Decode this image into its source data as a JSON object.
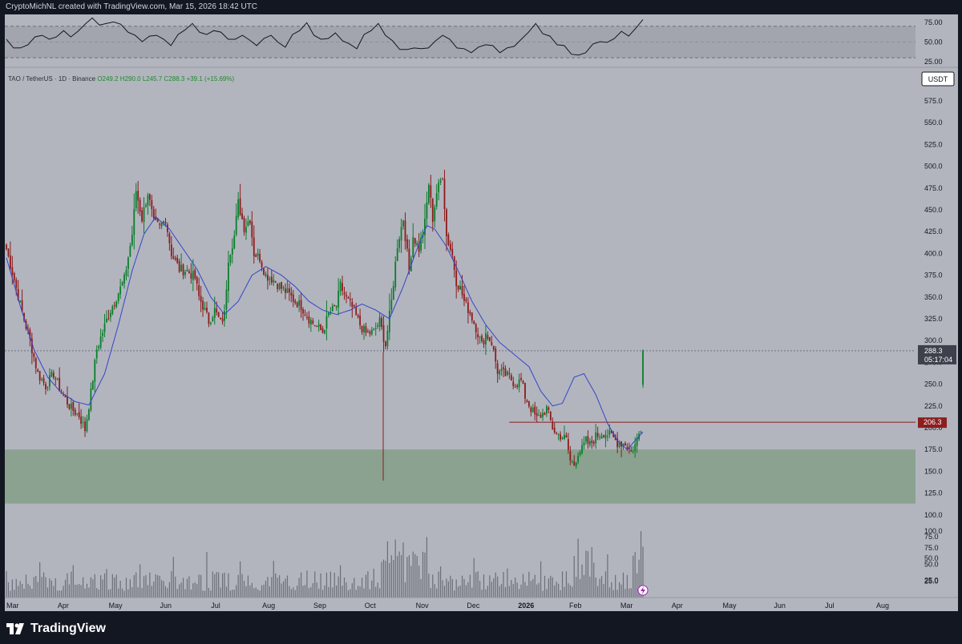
{
  "header": {
    "credit": "CryptoMichNL created with TradingView.com, Mar 15, 2026 18:42 UTC"
  },
  "legend": {
    "symbol": "TAO / TetherUS · 1D · Binance",
    "open": "O249.2",
    "high": "H290.0",
    "low": "L245.7",
    "close": "C288.3",
    "change": "+39.1 (+15.69%)"
  },
  "brand": {
    "name": "TradingView"
  },
  "chart_data": [
    {
      "type": "line",
      "panel": "RSI oscillator",
      "y_ticks": [
        "75.00",
        "50.00",
        "25.00"
      ],
      "ylim": [
        20,
        85
      ],
      "band": [
        30,
        70
      ],
      "midline": 50,
      "series": [
        {
          "values": [
            52,
            44,
            41,
            48,
            55,
            60,
            52,
            58,
            63,
            58,
            62,
            74,
            79,
            73,
            72,
            77,
            71,
            64,
            57,
            52,
            56,
            60,
            52,
            47,
            58,
            67,
            72,
            64,
            58,
            66,
            61,
            55,
            52,
            60,
            51,
            47,
            53,
            60,
            48,
            45,
            58,
            66,
            73,
            60,
            52,
            56,
            60,
            53,
            46,
            43,
            58,
            66,
            72,
            60,
            50,
            42,
            39,
            44,
            40,
            44,
            50,
            60,
            52,
            44,
            40,
            38,
            42,
            48,
            44,
            38,
            41,
            46,
            52,
            64,
            72,
            62,
            56,
            48,
            44,
            36,
            32,
            38,
            46,
            52,
            48,
            56,
            62,
            59,
            66,
            80
          ]
        }
      ]
    },
    {
      "type": "candlestick",
      "panel": "price",
      "y_ticks": [
        "575.0",
        "550.0",
        "525.0",
        "500.0",
        "475.0",
        "450.0",
        "425.0",
        "400.0",
        "375.0",
        "350.0",
        "325.0",
        "300.0",
        "275.0",
        "250.0",
        "225.0",
        "200.0",
        "175.0",
        "150.0",
        "125.0",
        "100.0",
        "75.0",
        "50.0",
        "25.0"
      ],
      "x_ticks": [
        "Mar",
        "Apr",
        "May",
        "Jun",
        "Jul",
        "Aug",
        "Sep",
        "Oct",
        "Nov",
        "Dec",
        "2026",
        "Feb",
        "Mar",
        "Apr",
        "May",
        "Jun",
        "Jul",
        "Aug"
      ],
      "y_currency": "USDT",
      "last_price": "288.3",
      "countdown": "05:17:04",
      "horizontal_level": {
        "value": 206.3,
        "label": "206.3",
        "from": "Dec"
      },
      "support_zone": [
        113,
        175
      ],
      "colors": {
        "up": "#0b7d2c",
        "down": "#8e1b1b",
        "ma": "#3644c8",
        "zone": "#8aa28f",
        "level": "#8b1e1e"
      },
      "anchors": [
        [
          0,
          405
        ],
        [
          4,
          370
        ],
        [
          8,
          332
        ],
        [
          12,
          300
        ],
        [
          16,
          262
        ],
        [
          20,
          248
        ],
        [
          24,
          262
        ],
        [
          28,
          240
        ],
        [
          33,
          222
        ],
        [
          37,
          214
        ],
        [
          40,
          198
        ],
        [
          43,
          240
        ],
        [
          46,
          290
        ],
        [
          52,
          330
        ],
        [
          56,
          350
        ],
        [
          60,
          370
        ],
        [
          64,
          422
        ],
        [
          66,
          472
        ],
        [
          69,
          440
        ],
        [
          72,
          470
        ],
        [
          75,
          435
        ],
        [
          78,
          430
        ],
        [
          81,
          440
        ],
        [
          84,
          400
        ],
        [
          88,
          382
        ],
        [
          92,
          380
        ],
        [
          96,
          372
        ],
        [
          98,
          350
        ],
        [
          100,
          340
        ],
        [
          103,
          322
        ],
        [
          106,
          335
        ],
        [
          109,
          320
        ],
        [
          111,
          330
        ],
        [
          113,
          395
        ],
        [
          116,
          420
        ],
        [
          118,
          458
        ],
        [
          121,
          430
        ],
        [
          124,
          440
        ],
        [
          126,
          400
        ],
        [
          129,
          395
        ],
        [
          132,
          375
        ],
        [
          136,
          370
        ],
        [
          140,
          360
        ],
        [
          143,
          355
        ],
        [
          147,
          345
        ],
        [
          150,
          340
        ],
        [
          154,
          325
        ],
        [
          157,
          318
        ],
        [
          161,
          310
        ],
        [
          164,
          330
        ],
        [
          168,
          340
        ],
        [
          170,
          363
        ],
        [
          173,
          348
        ],
        [
          176,
          338
        ],
        [
          180,
          318
        ],
        [
          183,
          308
        ],
        [
          187,
          310
        ],
        [
          190,
          322
        ],
        [
          193,
          295
        ],
        [
          196,
          345
        ],
        [
          199,
          410
        ],
        [
          202,
          440
        ],
        [
          205,
          380
        ],
        [
          207,
          420
        ],
        [
          210,
          405
        ],
        [
          213,
          435
        ],
        [
          215,
          480
        ],
        [
          217,
          440
        ],
        [
          219,
          470
        ],
        [
          222,
          490
        ],
        [
          224,
          420
        ],
        [
          227,
          398
        ],
        [
          229,
          368
        ],
        [
          231,
          360
        ],
        [
          233,
          345
        ],
        [
          236,
          332
        ],
        [
          239,
          315
        ],
        [
          242,
          295
        ],
        [
          244,
          308
        ],
        [
          247,
          298
        ],
        [
          250,
          265
        ],
        [
          253,
          262
        ],
        [
          256,
          258
        ],
        [
          259,
          250
        ],
        [
          262,
          254
        ],
        [
          264,
          236
        ],
        [
          267,
          222
        ],
        [
          270,
          210
        ],
        [
          273,
          216
        ],
        [
          275,
          222
        ],
        [
          278,
          200
        ],
        [
          280,
          193
        ],
        [
          283,
          190
        ],
        [
          285,
          186
        ],
        [
          287,
          162
        ],
        [
          289,
          158
        ],
        [
          291,
          172
        ],
        [
          293,
          175
        ],
        [
          295,
          185
        ],
        [
          297,
          180
        ],
        [
          300,
          190
        ],
        [
          304,
          195
        ],
        [
          308,
          190
        ],
        [
          311,
          183
        ],
        [
          315,
          182
        ],
        [
          318,
          172
        ],
        [
          320,
          180
        ],
        [
          323,
          200
        ],
        [
          324,
          288.3
        ]
      ],
      "ma_anchors": [
        [
          0,
          395
        ],
        [
          7,
          340
        ],
        [
          14,
          290
        ],
        [
          21,
          258
        ],
        [
          28,
          240
        ],
        [
          35,
          230
        ],
        [
          42,
          226
        ],
        [
          50,
          262
        ],
        [
          57,
          318
        ],
        [
          64,
          380
        ],
        [
          70,
          422
        ],
        [
          76,
          442
        ],
        [
          83,
          428
        ],
        [
          90,
          405
        ],
        [
          97,
          382
        ],
        [
          104,
          350
        ],
        [
          111,
          330
        ],
        [
          118,
          345
        ],
        [
          125,
          375
        ],
        [
          132,
          385
        ],
        [
          140,
          375
        ],
        [
          147,
          362
        ],
        [
          154,
          345
        ],
        [
          161,
          335
        ],
        [
          168,
          330
        ],
        [
          175,
          335
        ],
        [
          181,
          342
        ],
        [
          188,
          335
        ],
        [
          195,
          325
        ],
        [
          202,
          362
        ],
        [
          209,
          405
        ],
        [
          214,
          432
        ],
        [
          218,
          428
        ],
        [
          224,
          408
        ],
        [
          230,
          380
        ],
        [
          237,
          345
        ],
        [
          244,
          318
        ],
        [
          251,
          298
        ],
        [
          258,
          285
        ],
        [
          266,
          270
        ],
        [
          272,
          242
        ],
        [
          278,
          225
        ],
        [
          283,
          228
        ],
        [
          289,
          258
        ],
        [
          294,
          262
        ],
        [
          300,
          238
        ],
        [
          306,
          205
        ],
        [
          311,
          185
        ],
        [
          316,
          175
        ],
        [
          320,
          185
        ],
        [
          324,
          195
        ]
      ],
      "volume_ticks": [
        "100.0",
        "75.0",
        "50.0",
        "25.0"
      ],
      "volume_ylim": [
        0,
        145
      ]
    }
  ]
}
